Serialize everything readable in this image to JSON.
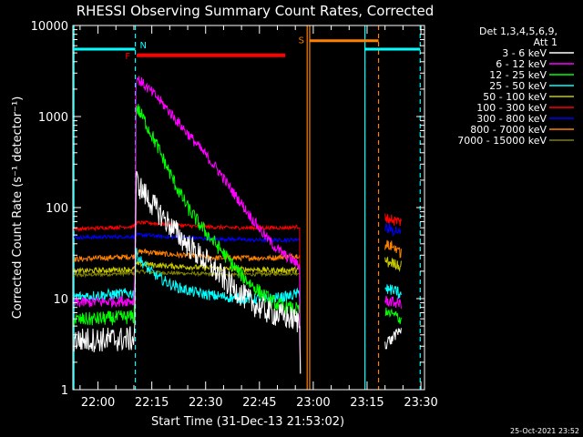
{
  "chart_data": {
    "type": "line",
    "title": "RHESSI Observing Summary Count Rates, Corrected",
    "xlabel": "Start Time (31-Dec-13 21:53:02)",
    "ylabel": "Corrected Count Rate (s⁻¹ detector⁻¹)",
    "footer": "25-Oct-2021 23:52",
    "x_unit": "minutes after 21:53:02",
    "xlim": [
      0,
      98
    ],
    "ylim": [
      1,
      10000
    ],
    "yscale": "log",
    "x_ticks": [
      {
        "t": 7,
        "label": "22:00"
      },
      {
        "t": 22,
        "label": "22:15"
      },
      {
        "t": 37,
        "label": "22:30"
      },
      {
        "t": 52,
        "label": "22:45"
      },
      {
        "t": 67,
        "label": "23:00"
      },
      {
        "t": 82,
        "label": "23:15"
      },
      {
        "t": 97,
        "label": "23:30"
      }
    ],
    "y_ticks": [
      {
        "v": 1,
        "label": "1"
      },
      {
        "v": 10,
        "label": "10"
      },
      {
        "v": 100,
        "label": "100"
      },
      {
        "v": 1000,
        "label": "1000"
      },
      {
        "v": 10000,
        "label": "10000"
      }
    ],
    "legend": {
      "header": [
        "Det 1,3,4,5,6,9,",
        "Att 1"
      ],
      "placement": "right"
    },
    "series": [
      {
        "name": "3 - 6 keV",
        "color": "#ffffff",
        "noise": 0.14,
        "points": [
          [
            0.3,
            3.5
          ],
          [
            17,
            3.6
          ],
          [
            17.3,
            6
          ],
          [
            17.6,
            200
          ],
          [
            19,
            160
          ],
          [
            22,
            110
          ],
          [
            25,
            80
          ],
          [
            28,
            58
          ],
          [
            31,
            43
          ],
          [
            34,
            33
          ],
          [
            37,
            26
          ],
          [
            40,
            20
          ],
          [
            43,
            15
          ],
          [
            46,
            12
          ],
          [
            49,
            9.5
          ],
          [
            52,
            8
          ],
          [
            55,
            7
          ],
          [
            58,
            6.5
          ],
          [
            61,
            6
          ],
          [
            63.3,
            5.5
          ]
        ]
      },
      {
        "name": "6 - 12 keV",
        "color": "#ff00ff",
        "noise": 0.06,
        "points": [
          [
            0.3,
            9
          ],
          [
            17,
            9.5
          ],
          [
            17.3,
            20
          ],
          [
            17.6,
            2700
          ],
          [
            20,
            2200
          ],
          [
            23,
            1700
          ],
          [
            26,
            1250
          ],
          [
            29,
            900
          ],
          [
            32,
            650
          ],
          [
            35,
            470
          ],
          [
            38,
            340
          ],
          [
            41,
            240
          ],
          [
            44,
            160
          ],
          [
            47,
            110
          ],
          [
            50,
            75
          ],
          [
            53,
            52
          ],
          [
            56,
            38
          ],
          [
            59,
            30
          ],
          [
            62,
            25
          ],
          [
            63.3,
            22
          ]
        ]
      },
      {
        "name": "12 - 25 keV",
        "color": "#00ff00",
        "noise": 0.08,
        "points": [
          [
            0.3,
            5.8
          ],
          [
            17,
            6.3
          ],
          [
            17.3,
            10
          ],
          [
            17.6,
            1300
          ],
          [
            20,
            900
          ],
          [
            23,
            520
          ],
          [
            26,
            290
          ],
          [
            29,
            165
          ],
          [
            32,
            100
          ],
          [
            35,
            68
          ],
          [
            38,
            48
          ],
          [
            41,
            35
          ],
          [
            44,
            25
          ],
          [
            47,
            18
          ],
          [
            50,
            14
          ],
          [
            53,
            11
          ],
          [
            56,
            9
          ],
          [
            59,
            8
          ],
          [
            63.3,
            7.5
          ]
        ]
      },
      {
        "name": "25 - 50 keV",
        "color": "#00ffff",
        "noise": 0.06,
        "points": [
          [
            0.3,
            10.5
          ],
          [
            17,
            11.5
          ],
          [
            17.3,
            14
          ],
          [
            17.6,
            32
          ],
          [
            19,
            26
          ],
          [
            21,
            21
          ],
          [
            24,
            17
          ],
          [
            27,
            14.5
          ],
          [
            30,
            13
          ],
          [
            33,
            12
          ],
          [
            36,
            11.3
          ],
          [
            39,
            10.8
          ],
          [
            42,
            10.5
          ],
          [
            45,
            10.2
          ],
          [
            48,
            10
          ],
          [
            51,
            9.9
          ],
          [
            54,
            10
          ],
          [
            57,
            10.2
          ],
          [
            60,
            10.6
          ],
          [
            63.3,
            11.5
          ]
        ]
      },
      {
        "name": "50 - 100 keV",
        "color": "#c8c800",
        "noise": 0.03,
        "points": [
          [
            0.3,
            20
          ],
          [
            17,
            21
          ],
          [
            17.6,
            24
          ],
          [
            20,
            24
          ],
          [
            25,
            23
          ],
          [
            30,
            22.5
          ],
          [
            35,
            22
          ],
          [
            40,
            21.5
          ],
          [
            45,
            21
          ],
          [
            50,
            21
          ],
          [
            55,
            20.5
          ],
          [
            60,
            20.5
          ],
          [
            63.3,
            21
          ]
        ]
      },
      {
        "name": "100 - 300 keV",
        "color": "#ff0000",
        "noise": 0.02,
        "points": [
          [
            0.3,
            58
          ],
          [
            17,
            62
          ],
          [
            17.6,
            68
          ],
          [
            20,
            68
          ],
          [
            25,
            66
          ],
          [
            30,
            64
          ],
          [
            35,
            62
          ],
          [
            40,
            61
          ],
          [
            45,
            60
          ],
          [
            50,
            60
          ],
          [
            55,
            60
          ],
          [
            60,
            60
          ],
          [
            63.3,
            62
          ]
        ]
      },
      {
        "name": "300 - 800 keV",
        "color": "#0000ff",
        "noise": 0.02,
        "points": [
          [
            0.3,
            47
          ],
          [
            17,
            48
          ],
          [
            17.6,
            50
          ],
          [
            20,
            50
          ],
          [
            25,
            48
          ],
          [
            30,
            47
          ],
          [
            35,
            46
          ],
          [
            40,
            45
          ],
          [
            45,
            45
          ],
          [
            50,
            44
          ],
          [
            55,
            44
          ],
          [
            60,
            44
          ],
          [
            63.3,
            45
          ]
        ]
      },
      {
        "name": "800 - 7000 keV",
        "color": "#ff8000",
        "noise": 0.03,
        "points": [
          [
            0.3,
            27
          ],
          [
            17,
            29
          ],
          [
            17.6,
            32
          ],
          [
            20,
            33
          ],
          [
            25,
            31
          ],
          [
            30,
            30
          ],
          [
            35,
            29
          ],
          [
            40,
            28
          ],
          [
            45,
            28
          ],
          [
            50,
            28
          ],
          [
            55,
            28
          ],
          [
            60,
            29
          ],
          [
            63.3,
            30
          ]
        ]
      },
      {
        "name": "7000 - 15000 keV",
        "color": "#808000",
        "noise": 0.02,
        "points": [
          [
            0.3,
            18
          ],
          [
            17,
            19
          ],
          [
            17.6,
            20
          ],
          [
            22,
            19.5
          ],
          [
            30,
            19
          ],
          [
            40,
            18.5
          ],
          [
            50,
            18.5
          ],
          [
            63.3,
            19
          ]
        ]
      }
    ],
    "tail_segments": [
      {
        "color": "#ffffff",
        "values": [
          3.2,
          3.5,
          4.0,
          4.5
        ]
      },
      {
        "color": "#ff00ff",
        "values": [
          9.5,
          9.3,
          9.0,
          8.8
        ]
      },
      {
        "color": "#00ff00",
        "values": [
          7.0,
          6.8,
          6.5,
          6.0
        ]
      },
      {
        "color": "#00ffff",
        "values": [
          13.0,
          12.5,
          12.0,
          11.0
        ]
      },
      {
        "color": "#c8c800",
        "values": [
          26.0,
          25.0,
          24.0,
          23.0
        ]
      },
      {
        "color": "#ff8000",
        "values": [
          39.0,
          38.0,
          36.0,
          32.0
        ]
      },
      {
        "color": "#0000ff",
        "values": [
          60.0,
          58.0,
          56.0,
          53.0
        ]
      },
      {
        "color": "#ff0000",
        "values": [
          78.0,
          75.0,
          72.0,
          70.0
        ]
      }
    ],
    "tail_x": [
      87,
      91.5
    ],
    "events": {
      "night_bars": [
        {
          "x1": 0.3,
          "x2": 17.4,
          "y": 5500,
          "color": "#00ffff"
        },
        {
          "x1": 81.4,
          "x2": 96.8,
          "y": 5500,
          "color": "#00ffff"
        }
      ],
      "flare_bar": {
        "x1": 17.8,
        "x2": 59.2,
        "y": 4700,
        "color": "#ff0000",
        "label": "F"
      },
      "saa_bar": {
        "x1": 66.0,
        "x2": 85.2,
        "y": 6800,
        "color": "#ff8000",
        "label": "S"
      },
      "n_label": "N",
      "vlines": [
        {
          "t": 0.3,
          "color": "#00ffff",
          "style": "solid"
        },
        {
          "t": 17.4,
          "color": "#00ffff",
          "style": "dashed"
        },
        {
          "t": 65.3,
          "color": "#ff8000",
          "style": "solid"
        },
        {
          "t": 66.0,
          "color": "#ff8000",
          "style": "solid"
        },
        {
          "t": 81.4,
          "color": "#00ffff",
          "style": "solid"
        },
        {
          "t": 85.2,
          "color": "#ff8000",
          "style": "dashed"
        },
        {
          "t": 96.8,
          "color": "#00ffff",
          "style": "dashed"
        }
      ]
    }
  }
}
